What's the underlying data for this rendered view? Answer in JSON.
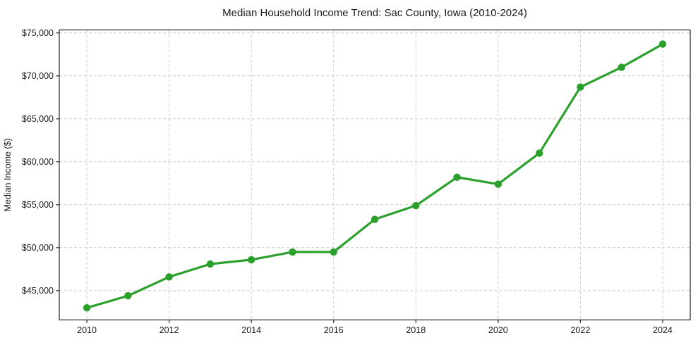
{
  "chart_data": {
    "type": "line",
    "title": "Median Household Income Trend: Sac County, Iowa (2010-2024)",
    "xlabel": "",
    "ylabel": "Median Income ($)",
    "x": [
      2010,
      2011,
      2012,
      2013,
      2014,
      2015,
      2016,
      2017,
      2018,
      2019,
      2020,
      2021,
      2022,
      2023,
      2024
    ],
    "series": [
      {
        "name": "Median Household Income",
        "values": [
          43000,
          44400,
          46600,
          48100,
          48600,
          49500,
          49500,
          53300,
          54900,
          58200,
          57400,
          61000,
          68700,
          71000,
          73700
        ]
      }
    ],
    "xlim": [
      2009.33,
      2024.67
    ],
    "ylim": [
      41600,
      75350
    ],
    "xticks": {
      "values": [
        2010,
        2012,
        2014,
        2016,
        2018,
        2020,
        2022,
        2024
      ],
      "labels": [
        "2010",
        "2012",
        "2014",
        "2016",
        "2018",
        "2020",
        "2022",
        "2024"
      ]
    },
    "yticks": {
      "values": [
        45000,
        50000,
        55000,
        60000,
        65000,
        70000,
        75000
      ],
      "labels": [
        "$45,000",
        "$50,000",
        "$55,000",
        "$60,000",
        "$65,000",
        "$70,000",
        "$75,000"
      ]
    },
    "grid": true,
    "grid_style": "dashed",
    "legend_position": "none",
    "marker": "circle",
    "colors": {
      "line": "#2ca02c",
      "marker": "#2ca02c",
      "grid": "#cccccc",
      "spine": "#262626",
      "text": "#1a1a1a",
      "background": "#ffffff"
    }
  }
}
